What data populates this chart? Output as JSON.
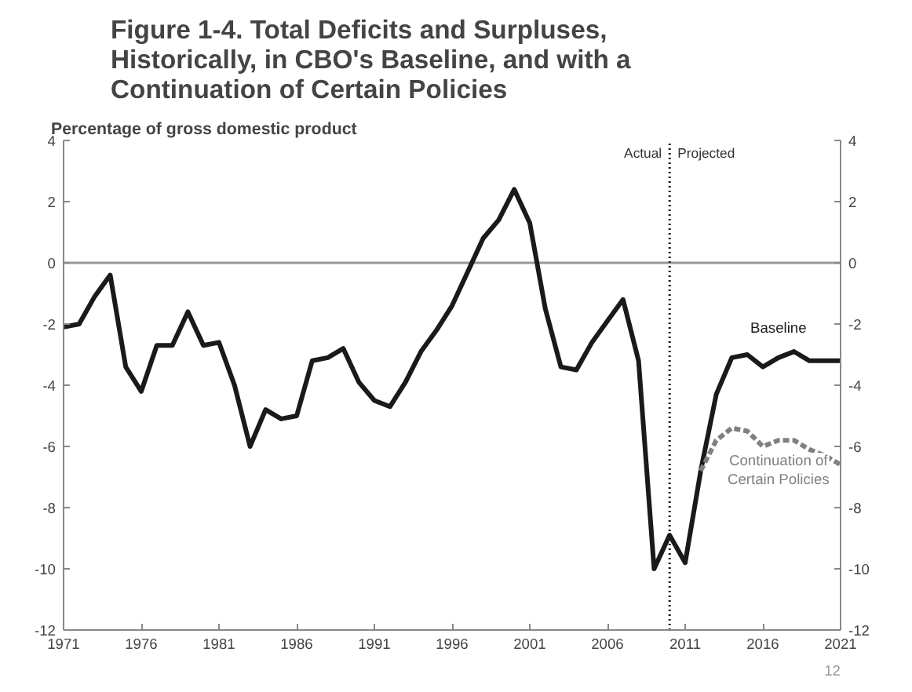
{
  "chart_data": {
    "type": "line",
    "title": "Figure 1-4. Total Deficits and Surpluses, Historically, in CBO's Baseline, and with a Continuation of Certain Policies",
    "ylabel": "Percentage of gross domestic product",
    "xlim": [
      1971,
      2021
    ],
    "xticks": [
      1971,
      1976,
      1981,
      1986,
      1991,
      1996,
      2001,
      2006,
      2011,
      2016,
      2021
    ],
    "ylim": [
      -12,
      4
    ],
    "yticks": [
      -12,
      -10,
      -8,
      -6,
      -4,
      -2,
      0,
      2,
      4
    ],
    "y2lim": [
      -12,
      4
    ],
    "y2ticks": [
      -12,
      -10,
      -8,
      -6,
      -4,
      -2,
      0,
      2,
      4
    ],
    "grid": false,
    "series": [
      {
        "name": "Baseline",
        "color": "#1a1a1a",
        "line_style": "solid",
        "x": [
          1971,
          1972,
          1973,
          1974,
          1975,
          1976,
          1977,
          1978,
          1979,
          1980,
          1981,
          1982,
          1983,
          1984,
          1985,
          1986,
          1987,
          1988,
          1989,
          1990,
          1991,
          1992,
          1993,
          1994,
          1995,
          1996,
          1997,
          1998,
          1999,
          2000,
          2001,
          2002,
          2003,
          2004,
          2005,
          2006,
          2007,
          2008,
          2009,
          2010,
          2011,
          2012,
          2013,
          2014,
          2015,
          2016,
          2017,
          2018,
          2019,
          2020,
          2021
        ],
        "values": [
          -2.1,
          -2.0,
          -1.1,
          -0.4,
          -3.4,
          -4.2,
          -2.7,
          -2.7,
          -1.6,
          -2.7,
          -2.6,
          -4.0,
          -6.0,
          -4.8,
          -5.1,
          -5.0,
          -3.2,
          -3.1,
          -2.8,
          -3.9,
          -4.5,
          -4.7,
          -3.9,
          -2.9,
          -2.2,
          -1.4,
          -0.3,
          0.8,
          1.4,
          2.4,
          1.3,
          -1.5,
          -3.4,
          -3.5,
          -2.6,
          -1.9,
          -1.2,
          -3.2,
          -10.0,
          -8.9,
          -9.8,
          -6.8,
          -4.3,
          -3.1,
          -3.0,
          -3.4,
          -3.1,
          -2.9,
          -3.2,
          -3.2,
          -3.2
        ]
      },
      {
        "name": "Continuation of Certain Policies",
        "color": "#808080",
        "line_style": "dashed",
        "x": [
          2012,
          2013,
          2014,
          2015,
          2016,
          2017,
          2018,
          2019,
          2020,
          2021
        ],
        "values": [
          -6.8,
          -5.8,
          -5.4,
          -5.5,
          -6.0,
          -5.8,
          -5.8,
          -6.1,
          -6.3,
          -6.6
        ]
      }
    ],
    "ref_lines": [
      {
        "axis": "y",
        "value": 0,
        "color": "#999999",
        "line_style": "solid"
      },
      {
        "axis": "x",
        "value": 2010,
        "color": "#1a1a1a",
        "line_style": "dotted"
      }
    ],
    "annotations": [
      "Actual",
      "Projected",
      "12"
    ]
  }
}
